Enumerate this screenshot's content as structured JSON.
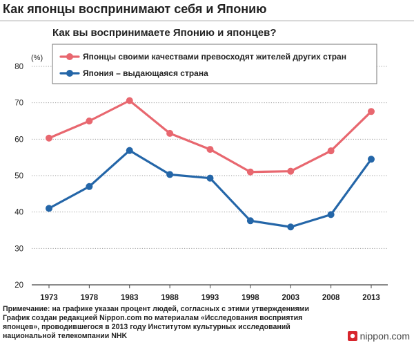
{
  "header": {
    "title": "Как японцы воспринимают себя и Японию"
  },
  "chart_data": {
    "type": "line",
    "title": "Как вы воспринимаете Японию и японцев?",
    "unit_label": "(%)",
    "xlabel": "",
    "ylabel": "(%)",
    "ylim": [
      20,
      80
    ],
    "yticks": [
      20,
      30,
      40,
      50,
      60,
      70,
      80
    ],
    "categories": [
      "1973",
      "1978",
      "1983",
      "1988",
      "1993",
      "1998",
      "2003",
      "2008",
      "2013"
    ],
    "series": [
      {
        "name": "Японцы своими качествами превосходят жителей других стран",
        "color": "#e8676f",
        "values": [
          60.3,
          65.0,
          70.6,
          61.6,
          57.2,
          51.0,
          51.2,
          56.8,
          67.6
        ]
      },
      {
        "name": "Япония – выдающаяся страна",
        "color": "#2466a8",
        "values": [
          41.0,
          47.0,
          56.9,
          50.3,
          49.3,
          37.6,
          35.9,
          39.3,
          54.5
        ]
      }
    ],
    "grid": true,
    "legend": "top"
  },
  "footer": {
    "note_lines": [
      "Примечание: на графике указан процент людей, согласных с этими утверждениями",
      "График создан редакцией Nippon.com по материалам «Исследования восприятия",
      "японцев», проводившегося в 2013 году Институтом культурных исследований",
      "национальной телекомпании NHK"
    ],
    "brand": "nippon.com"
  },
  "colors": {
    "grid": "#9a9a9a",
    "axis": "#444444",
    "brand_red": "#d7262d"
  }
}
